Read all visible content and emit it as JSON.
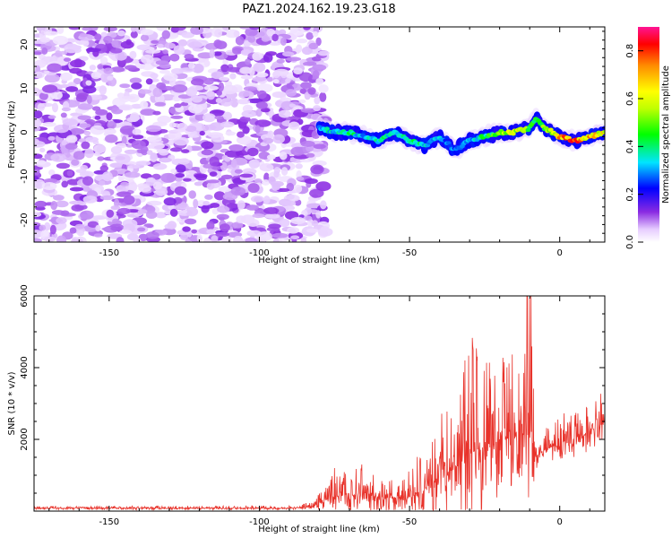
{
  "title": "PAZ1.2024.162.19.23.G18",
  "chart_data": [
    {
      "type": "heatmap",
      "xlabel": "Height of straight line (km)",
      "ylabel": "Frequency (Hz)",
      "xlim": [
        -175,
        15
      ],
      "ylim": [
        -25,
        24
      ],
      "xticks": [
        "-150",
        "-100",
        "-50",
        "0"
      ],
      "yticks": [
        "20",
        "10",
        "0",
        "-10",
        "-20"
      ],
      "colorbar": {
        "label": "Normalized spectral amplitude",
        "range": [
          0,
          0.9
        ],
        "ticks": [
          "0.0",
          "0.2",
          "0.4",
          "0.6",
          "0.8"
        ]
      },
      "signal_track": {
        "x": [
          -80,
          -75,
          -70,
          -65,
          -60,
          -55,
          -50,
          -45,
          -40,
          -35,
          -30,
          -25,
          -20,
          -15,
          -10,
          -8,
          -5,
          0,
          5,
          10,
          15
        ],
        "y": [
          1,
          0,
          0,
          -1,
          -2,
          0,
          -2,
          -3,
          -1,
          -4,
          -2,
          -1,
          0,
          0,
          1,
          3,
          1,
          -1,
          -2,
          -1,
          0
        ],
        "amp": [
          0.35,
          0.4,
          0.45,
          0.35,
          0.45,
          0.4,
          0.45,
          0.4,
          0.35,
          0.3,
          0.35,
          0.45,
          0.6,
          0.65,
          0.55,
          0.5,
          0.6,
          0.8,
          0.85,
          0.75,
          0.7
        ]
      },
      "noise_region_x": [
        -175,
        -80
      ]
    },
    {
      "type": "line",
      "xlabel": "Height of straight line (km)",
      "ylabel": "SNR (10 * v/v)",
      "xlim": [
        -175,
        15
      ],
      "ylim": [
        0,
        6000
      ],
      "xticks": [
        "-150",
        "-100",
        "-50",
        "0"
      ],
      "yticks": [
        "2000",
        "4000",
        "6000"
      ],
      "line_color": "#e8332b",
      "envelope": {
        "x": [
          -175,
          -90,
          -82,
          -78,
          -75,
          -70,
          -65,
          -60,
          -55,
          -50,
          -45,
          -40,
          -35,
          -32,
          -30,
          -25,
          -20,
          -15,
          -12,
          -10,
          -8,
          -5,
          0,
          5,
          10,
          13,
          15
        ],
        "base": [
          80,
          80,
          120,
          300,
          400,
          450,
          450,
          400,
          350,
          400,
          600,
          900,
          1200,
          1500,
          1600,
          1800,
          2000,
          2200,
          2400,
          2300,
          1500,
          1700,
          1900,
          2000,
          2200,
          2400,
          2500
        ],
        "amp": [
          60,
          70,
          150,
          500,
          900,
          800,
          900,
          700,
          600,
          800,
          1200,
          1800,
          2200,
          3000,
          3300,
          2800,
          2600,
          2400,
          2300,
          3700,
          900,
          700,
          800,
          900,
          1000,
          900,
          800
        ]
      }
    }
  ]
}
